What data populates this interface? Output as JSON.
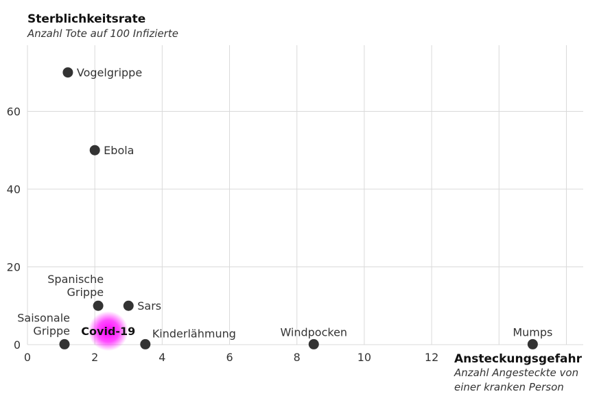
{
  "chart_data": {
    "type": "scatter",
    "ytitle": "Sterblichkeitsrate",
    "ysubtitle": "Anzahl Tote auf 100 Infizierte",
    "xtitle": "Ansteckungsgefahr",
    "xsubtitle_line1": "Anzahl Angesteckte von",
    "xsubtitle_line2": "einer kranken Person",
    "xlim": [
      0,
      16.5
    ],
    "ylim": [
      0,
      77
    ],
    "xticks": [
      0,
      2,
      4,
      6,
      8,
      10,
      12
    ],
    "xgrid": [
      0,
      2,
      4,
      6,
      8,
      10,
      12,
      14,
      16
    ],
    "yticks": [
      0,
      20,
      40,
      60
    ],
    "grid": true,
    "highlight_color": "#ff00ff",
    "points": [
      {
        "label": [
          "Vogelgrippe"
        ],
        "x": 1.2,
        "y": 70,
        "labelpos": "right"
      },
      {
        "label": [
          "Ebola"
        ],
        "x": 2.0,
        "y": 50,
        "labelpos": "right"
      },
      {
        "label": [
          "Spanische",
          "Grippe"
        ],
        "x": 2.1,
        "y": 10,
        "labelpos": "top-left"
      },
      {
        "label": [
          "Sars"
        ],
        "x": 3.0,
        "y": 10,
        "labelpos": "right"
      },
      {
        "label": [
          "Saisonale",
          "Grippe"
        ],
        "x": 1.1,
        "y": 0.1,
        "labelpos": "top-left"
      },
      {
        "label": [
          "Covid-19"
        ],
        "x": 2.4,
        "y": 3.5,
        "labelpos": "center",
        "highlight": true
      },
      {
        "label": [
          "Kinderlähmung"
        ],
        "x": 3.5,
        "y": 0.1,
        "labelpos": "top-right"
      },
      {
        "label": [
          "Windpocken"
        ],
        "x": 8.5,
        "y": 0.1,
        "labelpos": "top"
      },
      {
        "label": [
          "Mumps"
        ],
        "x": 15.0,
        "y": 0.1,
        "labelpos": "top"
      }
    ]
  }
}
